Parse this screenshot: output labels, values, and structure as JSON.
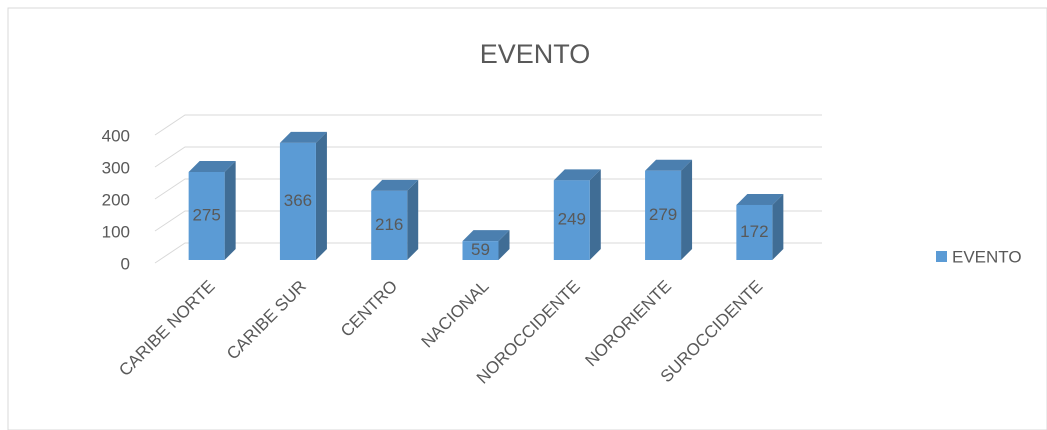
{
  "chart_data": {
    "type": "bar",
    "title": "EVENTO",
    "categories": [
      "CARIBE NORTE",
      "CARIBE SUR",
      "CENTRO",
      "NACIONAL",
      "NOROCCIDENTE",
      "NORORIENTE",
      "SUROCCIDENTE"
    ],
    "series": [
      {
        "name": "EVENTO",
        "color": "#5b9bd5",
        "values": [
          275,
          366,
          216,
          59,
          249,
          279,
          172
        ]
      }
    ],
    "ylim": [
      0,
      400
    ],
    "yticks": [
      0,
      100,
      200,
      300,
      400
    ],
    "grid": true,
    "legend": "right",
    "data_labels": true
  }
}
